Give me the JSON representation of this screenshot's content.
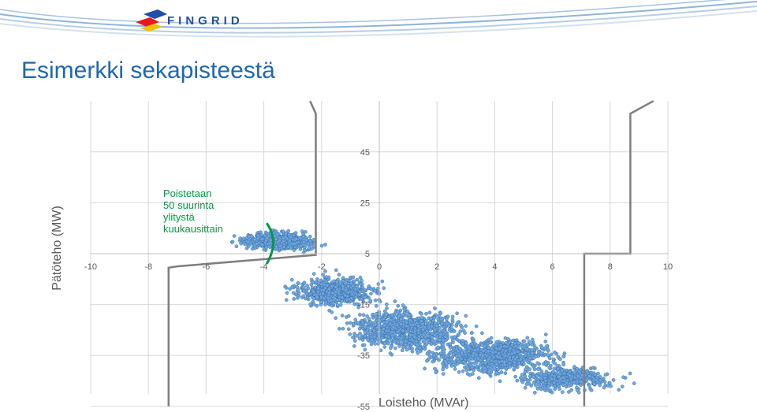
{
  "slide": {
    "title": "Esimerkki sekapisteestä",
    "logo_text": "FINGRID"
  },
  "annotation": {
    "lines": [
      "Poistetaan",
      "50 suurinta",
      "ylitystä",
      "kuukausittain"
    ]
  },
  "colors": {
    "title": "#1f67b1",
    "points": "#6fa8dc",
    "point_edge": "#2f5f9e",
    "boundary": "#7f7f7f",
    "annotation": "#009a44",
    "grid": "#d9d9d9"
  },
  "chart_data": {
    "type": "scatter",
    "xlabel": "Loisteho (MVAr)",
    "ylabel": "Pätöteho (MW)",
    "xlim": [
      -10,
      10
    ],
    "ylim": [
      -55,
      65
    ],
    "x_ticks": [
      -10,
      -8,
      -6,
      -4,
      -2,
      0,
      2,
      4,
      6,
      8,
      10
    ],
    "y_ticks": [
      45,
      25,
      5,
      -15,
      -35,
      -55
    ],
    "grid": true,
    "boundary": [
      [
        [
          -2.4,
          65
        ],
        [
          -2.2,
          60
        ],
        [
          -2.2,
          4.5
        ],
        [
          -7.0,
          0
        ],
        [
          -7.3,
          -0.5
        ],
        [
          -7.3,
          -55
        ]
      ],
      [
        [
          9.5,
          65
        ],
        [
          8.7,
          60
        ],
        [
          8.7,
          5
        ],
        [
          7.1,
          5
        ],
        [
          7.1,
          -55
        ]
      ]
    ],
    "annotation_curve": [
      [
        -3.9,
        17
      ],
      [
        -3.6,
        12
      ],
      [
        -3.6,
        7
      ],
      [
        -3.9,
        1
      ]
    ],
    "clusters": [
      {
        "cx": -3.5,
        "cy": 10,
        "sx": 1.0,
        "sy": 2.5,
        "n": 650
      },
      {
        "cx": -1.5,
        "cy": -10,
        "sx": 1.1,
        "sy": 4.5,
        "n": 600
      },
      {
        "cx": 1.0,
        "cy": -25,
        "sx": 1.5,
        "sy": 6.0,
        "n": 900
      },
      {
        "cx": 4.0,
        "cy": -35,
        "sx": 1.6,
        "sy": 5.5,
        "n": 900
      },
      {
        "cx": 6.5,
        "cy": -44,
        "sx": 1.3,
        "sy": 3.5,
        "n": 450
      }
    ]
  }
}
